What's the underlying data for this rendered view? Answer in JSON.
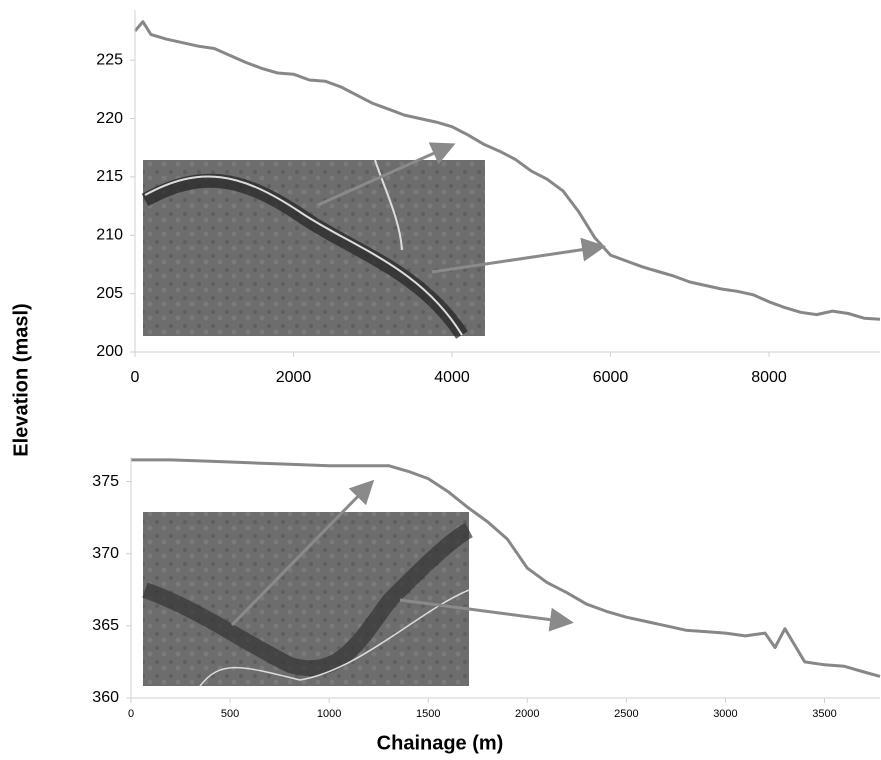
{
  "chart_data": [
    {
      "type": "line",
      "ylabel": "Elevation (masl)",
      "color": "#878787",
      "x": [
        0,
        100,
        200,
        400,
        600,
        800,
        1000,
        1200,
        1400,
        1600,
        1800,
        2000,
        2200,
        2400,
        2600,
        2800,
        3000,
        3200,
        3400,
        3600,
        3800,
        4000,
        4200,
        4400,
        4600,
        4800,
        5000,
        5200,
        5400,
        5600,
        5800,
        6000,
        6200,
        6400,
        6600,
        6800,
        7000,
        7200,
        7400,
        7600,
        7800,
        8000,
        8200,
        8400,
        8600,
        8800,
        9000,
        9200,
        9400
      ],
      "values": [
        227.5,
        228.3,
        227.2,
        226.8,
        226.5,
        226.2,
        226.0,
        225.4,
        224.8,
        224.3,
        223.9,
        223.8,
        223.3,
        223.2,
        222.7,
        222.0,
        221.3,
        220.8,
        220.3,
        220.0,
        219.7,
        219.3,
        218.6,
        217.8,
        217.2,
        216.5,
        215.5,
        214.8,
        213.8,
        212.0,
        209.8,
        208.3,
        207.8,
        207.3,
        206.9,
        206.5,
        206.0,
        205.7,
        205.4,
        205.2,
        204.9,
        204.3,
        203.8,
        203.4,
        203.2,
        203.5,
        203.3,
        202.9,
        202.8
      ],
      "xlim": [
        0,
        9400
      ],
      "ylim": [
        200,
        229.3
      ],
      "xticks": [
        0,
        2000,
        4000,
        6000,
        8000
      ],
      "yticks": [
        200,
        205,
        210,
        215,
        220,
        225
      ]
    },
    {
      "type": "line",
      "xlabel": "Chainage (m)",
      "color": "#878787",
      "x": [
        0,
        200,
        400,
        600,
        800,
        1000,
        1200,
        1300,
        1400,
        1500,
        1600,
        1700,
        1800,
        1900,
        2000,
        2100,
        2200,
        2300,
        2400,
        2500,
        2600,
        2700,
        2800,
        2900,
        3000,
        3100,
        3200,
        3250,
        3300,
        3400,
        3500,
        3600,
        3700,
        3780
      ],
      "values": [
        376.5,
        376.5,
        376.4,
        376.3,
        376.2,
        376.1,
        376.1,
        376.1,
        375.7,
        375.2,
        374.3,
        373.2,
        372.2,
        371.0,
        369.0,
        368.0,
        367.3,
        366.5,
        366.0,
        365.6,
        365.3,
        365.0,
        364.7,
        364.6,
        364.5,
        364.3,
        364.5,
        363.5,
        364.8,
        362.5,
        362.3,
        362.2,
        361.8,
        361.5
      ],
      "xlim": [
        0,
        3780
      ],
      "ylim": [
        360,
        376.7
      ],
      "xticks": [
        0,
        500,
        1000,
        1500,
        2000,
        2500,
        3000,
        3500
      ],
      "yticks": [
        360,
        365,
        370,
        375
      ]
    }
  ]
}
